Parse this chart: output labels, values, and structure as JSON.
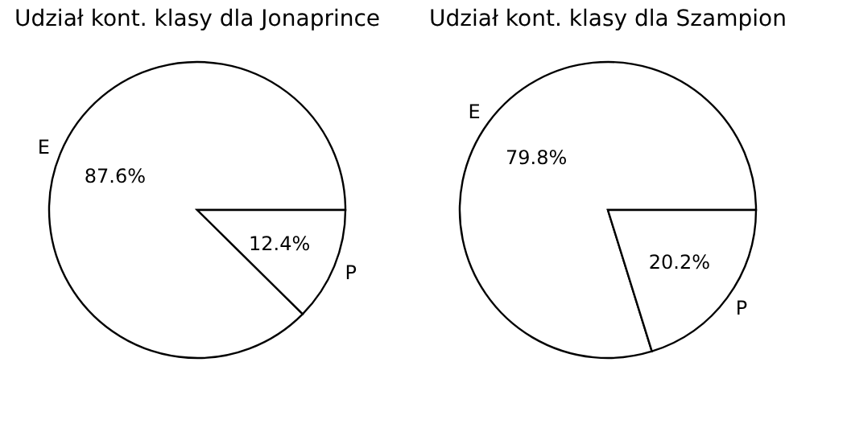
{
  "chart_data": [
    {
      "type": "pie",
      "title": "Udział kont. klasy dla Jonaprince",
      "categories": [
        "E",
        "P"
      ],
      "values": [
        87.6,
        12.4
      ],
      "colors": [
        "#ffffff",
        "#ffffff"
      ],
      "value_labels": [
        "87.6%",
        "12.4%"
      ]
    },
    {
      "type": "pie",
      "title": "Udział kont. klasy dla Szampion",
      "categories": [
        "E",
        "P"
      ],
      "values": [
        79.8,
        20.2
      ],
      "colors": [
        "#ffffff",
        "#ffffff"
      ],
      "value_labels": [
        "79.8%",
        "20.2%"
      ]
    }
  ]
}
